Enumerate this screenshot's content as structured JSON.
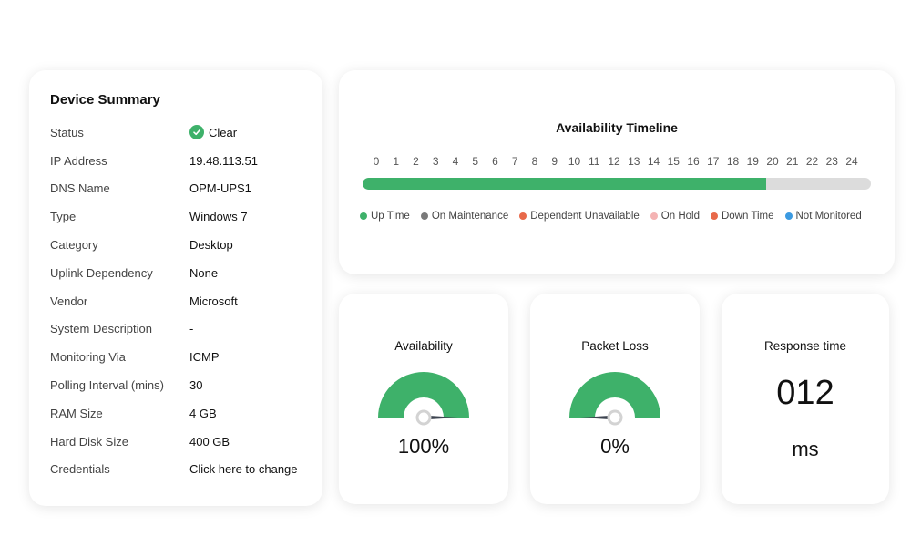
{
  "summary": {
    "title": "Device Summary",
    "rows": [
      {
        "label": "Status",
        "value": "Clear"
      },
      {
        "label": "IP Address",
        "value": "19.48.113.51"
      },
      {
        "label": "DNS Name",
        "value": "OPM-UPS1"
      },
      {
        "label": "Type",
        "value": "Windows 7"
      },
      {
        "label": "Category",
        "value": "Desktop"
      },
      {
        "label": "Uplink Dependency",
        "value": "None"
      },
      {
        "label": "Vendor",
        "value": "Microsoft"
      },
      {
        "label": "System Description",
        "value": "-"
      },
      {
        "label": "Monitoring Via",
        "value": "ICMP"
      },
      {
        "label": "Polling Interval (mins)",
        "value": "30"
      },
      {
        "label": "RAM Size",
        "value": "4 GB"
      },
      {
        "label": "Hard Disk Size",
        "value": "400 GB"
      },
      {
        "label": "Credentials",
        "value": "Click here to change"
      }
    ],
    "status_icon": "check-circle-icon",
    "status_color": "#3eb16a"
  },
  "timeline": {
    "title": "Availability Timeline",
    "ticks": [
      "0",
      "1",
      "2",
      "3",
      "4",
      "5",
      "6",
      "7",
      "8",
      "9",
      "10",
      "11",
      "12",
      "13",
      "14",
      "15",
      "16",
      "17",
      "18",
      "19",
      "20",
      "21",
      "22",
      "23",
      "24"
    ],
    "uptime_until_hour": 19.6,
    "legend": [
      {
        "label": "Up Time",
        "color": "#3eb16a"
      },
      {
        "label": "On Maintenance",
        "color": "#7a7a7a"
      },
      {
        "label": "Dependent Unavailable",
        "color": "#e8694a"
      },
      {
        "label": "On Hold",
        "color": "#f4b3b3"
      },
      {
        "label": "Down Time",
        "color": "#e8694a"
      },
      {
        "label": "Not Monitored",
        "color": "#3b9ae1"
      }
    ]
  },
  "metrics": {
    "availability": {
      "title": "Availability",
      "value": "100%",
      "fraction": 1.0
    },
    "packet_loss": {
      "title": "Packet Loss",
      "value": "0%",
      "fraction": 0.0
    },
    "response_time": {
      "title": "Response time",
      "value": "012",
      "unit": "ms"
    }
  },
  "colors": {
    "accent": "#3eb16a",
    "track": "#dcdcdc",
    "needle": "#3d4450"
  }
}
